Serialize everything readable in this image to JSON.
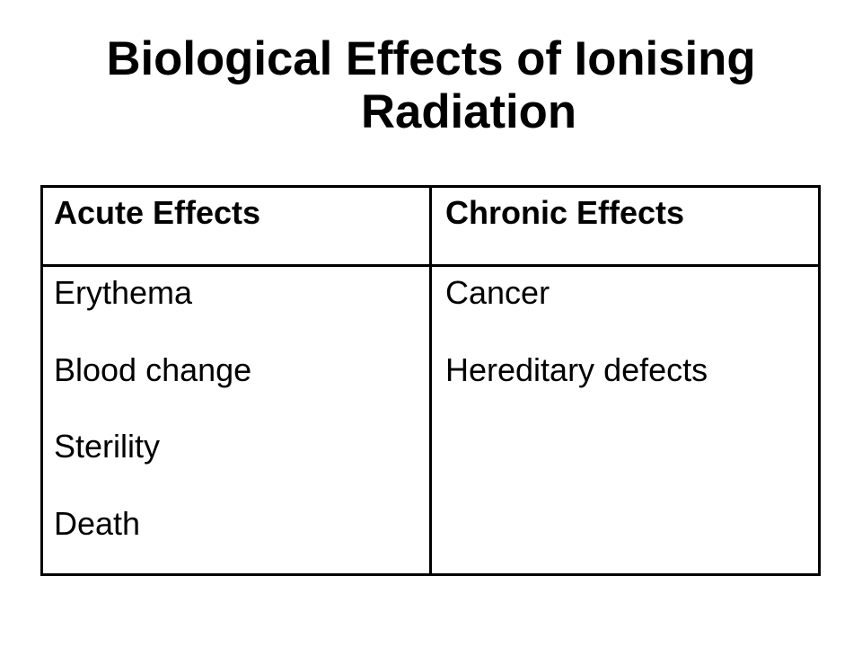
{
  "slide": {
    "title": {
      "line1": "Biological Effects of Ionising",
      "line2": "Radiation"
    },
    "table": {
      "columns": [
        {
          "header": "Acute Effects",
          "items": [
            "Erythema",
            "Blood change",
            "Sterility",
            "Death"
          ]
        },
        {
          "header": "Chronic Effects",
          "items": [
            "Cancer",
            "Hereditary defects"
          ]
        }
      ]
    }
  },
  "colors": {
    "text": "#000000",
    "border": "#000000",
    "background": "#ffffff"
  }
}
